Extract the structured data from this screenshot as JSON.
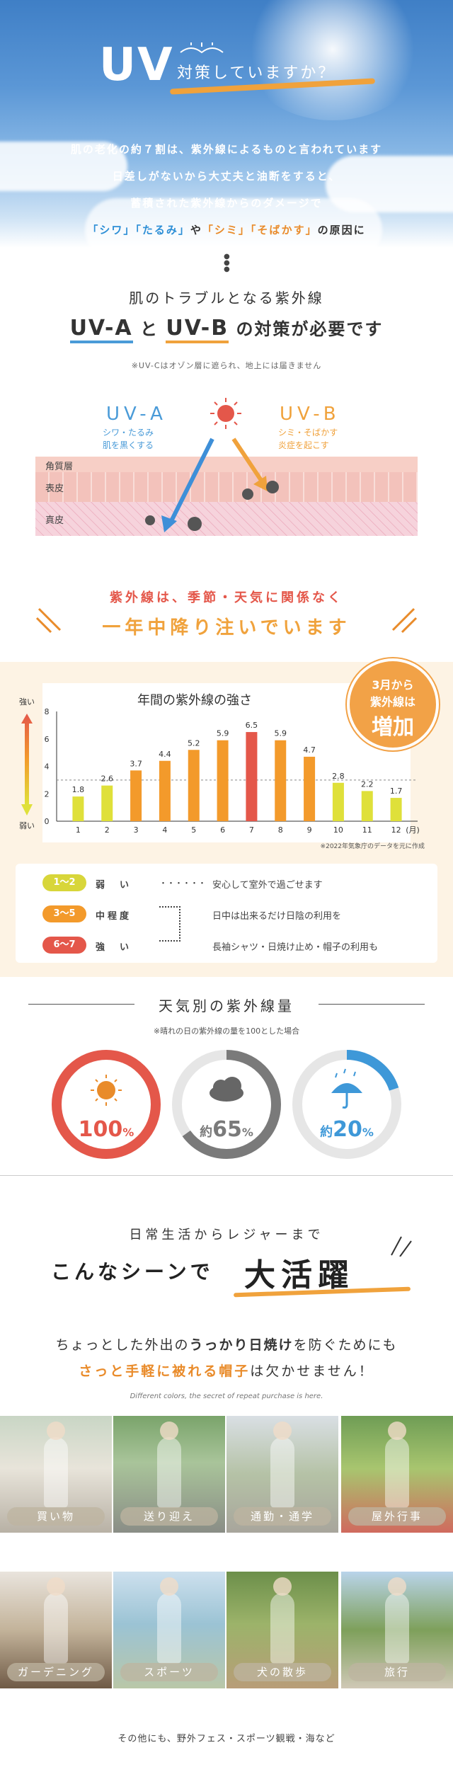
{
  "hero": {
    "title": "UV",
    "subtitle": "対策していますか？",
    "line1": "肌の老化の約７割は、紫外線によるものと言われています",
    "line2": "日差しがないから大丈夫と油断をすると、",
    "line3": "蓄積された紫外線からのダメージで",
    "line4_a": "「シワ」「たるみ」",
    "line4_b": "や",
    "line4_c": "「シミ」「そばかす」",
    "line4_d": "の原因に"
  },
  "trouble": {
    "title": "肌のトラブルとなる紫外線",
    "uva": "UV-A",
    "and": "と",
    "uvb": "UV-B",
    "suffix": "の対策が必要です",
    "note": "※UV-Cはオゾン層に遮られ、地上には届きません"
  },
  "diagram": {
    "uva_label": "UV-A",
    "uva_desc1": "シワ・たるみ",
    "uva_desc2": "肌を黒くする",
    "uvb_label": "UV-B",
    "uvb_desc1": "シミ・そばかす",
    "uvb_desc2": "炎症を起こす",
    "layer1": "角質層",
    "layer2": "表皮",
    "layer3": "真皮",
    "colors": {
      "uva": "#4a9bd8",
      "uvb": "#f0a23c"
    }
  },
  "season": {
    "line1": "紫外線は、季節・天気に関係なく",
    "line2": "一年中降り注いでいます"
  },
  "badge": {
    "line1": "3月から",
    "line2": "紫外線は",
    "line3": "増加"
  },
  "chart_data": {
    "type": "bar",
    "title": "年間の紫外線の強さ",
    "categories": [
      "1",
      "2",
      "3",
      "4",
      "5",
      "6",
      "7",
      "8",
      "9",
      "10",
      "11",
      "12"
    ],
    "values": [
      1.8,
      2.6,
      3.7,
      4.4,
      5.2,
      5.9,
      6.5,
      5.9,
      4.7,
      2.8,
      2.2,
      1.7
    ],
    "xunit": "(月)",
    "yticks": [
      "0",
      "2",
      "4",
      "6",
      "8"
    ],
    "ylim": [
      0,
      8
    ],
    "strong_label": "強い",
    "weak_label": "弱い",
    "source": "※2022年気象庁のデータを元に作成",
    "colors": {
      "low": "#dfe03a",
      "mid": "#f39a2b",
      "high": "#e4574a"
    }
  },
  "levels": [
    {
      "range": "1〜2",
      "name": "弱　い",
      "dots": "・・・・・・",
      "desc": "安心して室外で過ごせます",
      "color": "#d8d63a"
    },
    {
      "range": "3〜5",
      "name": "中程度",
      "dots": "",
      "desc": "日中は出来るだけ日陰の利用を",
      "color": "#f39a2b"
    },
    {
      "range": "6〜7",
      "name": "強　い",
      "dots": "",
      "desc": "長袖シャツ・日焼け止め・帽子の利用も",
      "color": "#e4574a"
    }
  ],
  "weather": {
    "title": "天気別の紫外線量",
    "note": "※晴れの日の紫外線の量を100とした場合",
    "items": [
      {
        "prefix": "",
        "value": "100",
        "unit": "%",
        "fraction": 1.0,
        "color": "#e4574a",
        "icon": "sun-icon"
      },
      {
        "prefix": "約",
        "value": "65",
        "unit": "%",
        "fraction": 0.65,
        "color": "#7a7a7a",
        "icon": "cloud-icon"
      },
      {
        "prefix": "約",
        "value": "20",
        "unit": "%",
        "fraction": 0.2,
        "color": "#3e98d8",
        "icon": "umbrella-icon"
      }
    ]
  },
  "daily": {
    "line1": "日常生活からレジャーまで",
    "scene": "こんなシーンで",
    "katsu": "大活躍",
    "s1_a": "ちょっとした外出の",
    "s1_b": "うっかり日焼け",
    "s1_c": "を防ぐためにも",
    "s2_a": "さっと手軽に被れる帽子",
    "s2_b": "は欠かせません！",
    "italic": "Different colors, the secret of repeat purchase is here."
  },
  "photos": [
    {
      "label": "買い物"
    },
    {
      "label": "送り迎え"
    },
    {
      "label": "通勤・通学"
    },
    {
      "label": "屋外行事"
    },
    {
      "label": "ガーデニング"
    },
    {
      "label": "スポーツ"
    },
    {
      "label": "犬の散歩"
    },
    {
      "label": "旅行"
    }
  ],
  "footer": "その他にも、野外フェス・スポーツ観戦・海など"
}
